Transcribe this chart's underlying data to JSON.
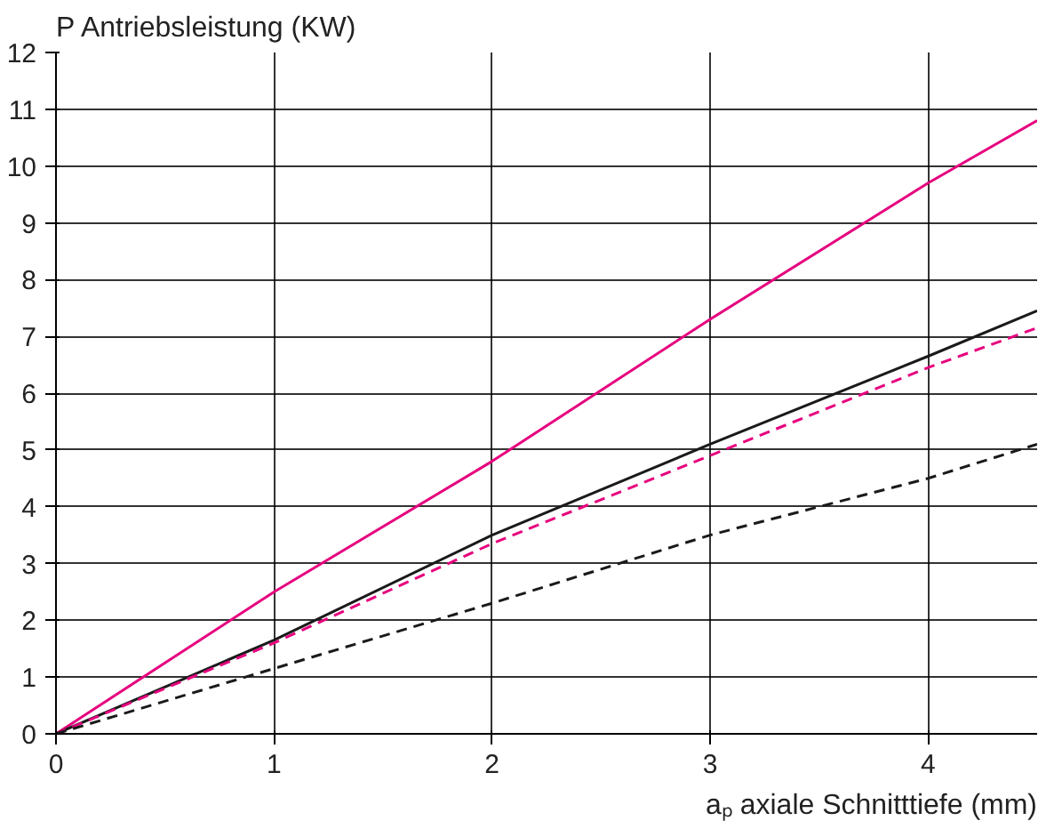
{
  "chart_data": {
    "type": "line",
    "ylabel": "P Antriebsleistung (KW)",
    "xlabel": "aₚ axiale Schnitttiefe (mm)",
    "x": [
      0,
      1,
      2,
      3,
      4,
      4.5
    ],
    "series": [
      {
        "color": "#e6007e",
        "values": [
          0,
          2.5,
          4.8,
          7.3,
          9.7,
          10.8
        ]
      },
      {
        "color": "#1a1a1a",
        "values": [
          0,
          1.65,
          3.5,
          5.1,
          6.65,
          7.45
        ]
      },
      {
        "color": "#e6007e",
        "values": [
          0,
          1.6,
          3.35,
          4.9,
          6.45,
          7.15
        ],
        "line_style": "dashed"
      },
      {
        "color": "#1a1a1a",
        "values": [
          0,
          1.15,
          2.3,
          3.5,
          4.5,
          5.1
        ],
        "line_style": "dashed"
      }
    ],
    "xlim": [
      0,
      4.5
    ],
    "ylim": [
      0,
      12
    ],
    "xticks": [
      0,
      1,
      2,
      3,
      4
    ],
    "yticks": [
      0,
      1,
      2,
      3,
      4,
      5,
      6,
      7,
      8,
      9,
      10,
      11,
      12
    ],
    "grid": true,
    "marker": "none",
    "line_style": "solid"
  }
}
